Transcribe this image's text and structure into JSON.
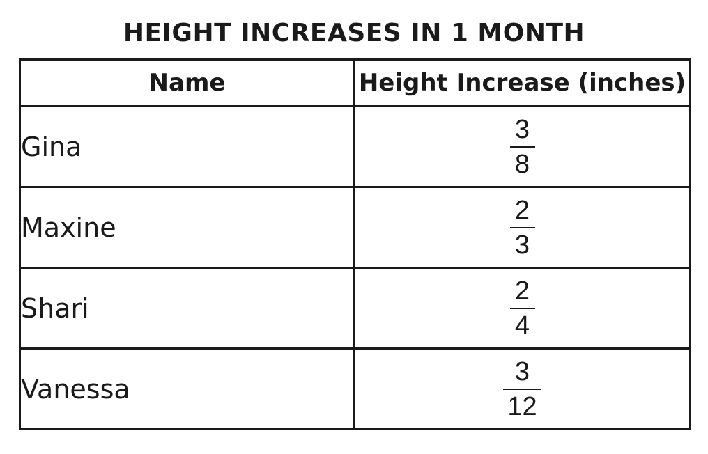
{
  "title": "HEIGHT INCREASES IN 1 MONTH",
  "columns": [
    "Name",
    "Height Increase (inches)"
  ],
  "rows": [
    {
      "name": "Gina",
      "numerator": "3",
      "denominator": "8"
    },
    {
      "name": "Maxine",
      "numerator": "2",
      "denominator": "3"
    },
    {
      "name": "Shari",
      "numerator": "2",
      "denominator": "4"
    },
    {
      "name": "Vanessa",
      "numerator": "3",
      "denominator": "12"
    }
  ],
  "chart_data": {
    "type": "table",
    "title": "HEIGHT INCREASES IN 1 MONTH",
    "columns": [
      "Name",
      "Height Increase (inches)"
    ],
    "rows": [
      [
        "Gina",
        "3/8"
      ],
      [
        "Maxine",
        "2/3"
      ],
      [
        "Shari",
        "2/4"
      ],
      [
        "Vanessa",
        "3/12"
      ]
    ]
  }
}
